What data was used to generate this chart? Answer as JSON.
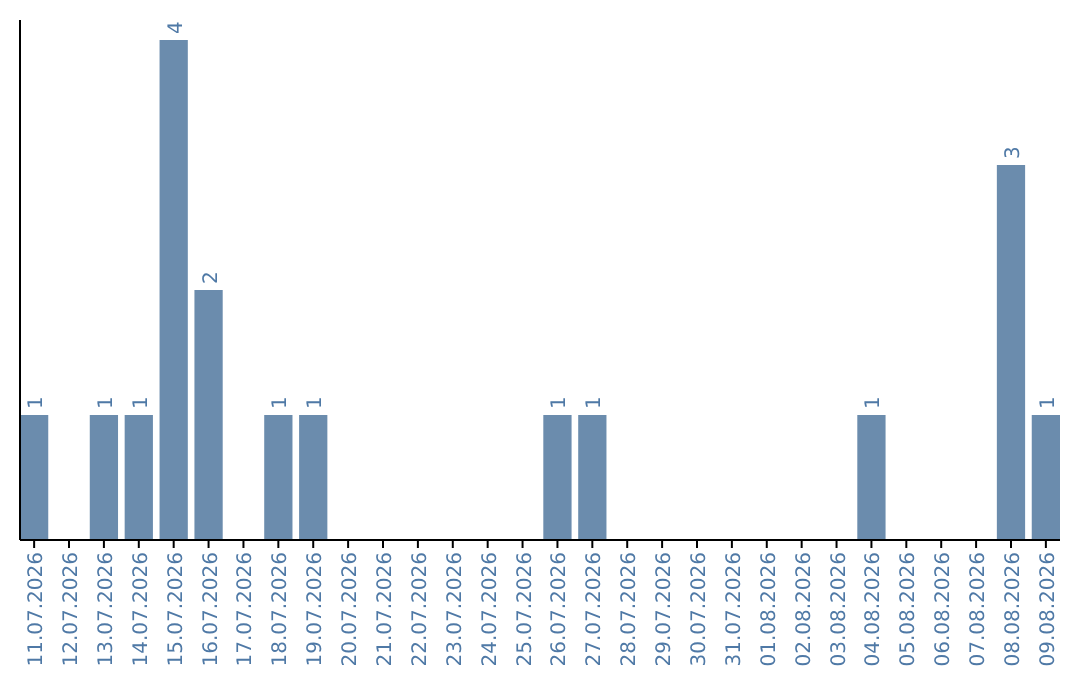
{
  "chart_data": {
    "type": "bar",
    "categories": [
      "11.07.2026",
      "12.07.2026",
      "13.07.2026",
      "14.07.2026",
      "15.07.2026",
      "16.07.2026",
      "17.07.2026",
      "18.07.2026",
      "19.07.2026",
      "20.07.2026",
      "21.07.2026",
      "22.07.2026",
      "23.07.2026",
      "24.07.2026",
      "25.07.2026",
      "26.07.2026",
      "27.07.2026",
      "28.07.2026",
      "29.07.2026",
      "30.07.2026",
      "31.07.2026",
      "01.08.2026",
      "02.08.2026",
      "03.08.2026",
      "04.08.2026",
      "05.08.2026",
      "06.08.2026",
      "07.08.2026",
      "08.08.2026",
      "09.08.2026"
    ],
    "values": [
      1,
      0,
      1,
      1,
      4,
      2,
      0,
      1,
      1,
      0,
      0,
      0,
      0,
      0,
      0,
      1,
      1,
      0,
      0,
      0,
      0,
      0,
      0,
      0,
      1,
      0,
      0,
      0,
      3,
      1
    ],
    "value_labels": [
      "1",
      null,
      "1",
      "1",
      "4",
      "2",
      null,
      "1",
      "1",
      null,
      null,
      null,
      null,
      null,
      null,
      "1",
      "1",
      null,
      null,
      null,
      null,
      null,
      null,
      null,
      "1",
      null,
      null,
      null,
      "3",
      "1"
    ],
    "color": "#6b8cad"
  }
}
